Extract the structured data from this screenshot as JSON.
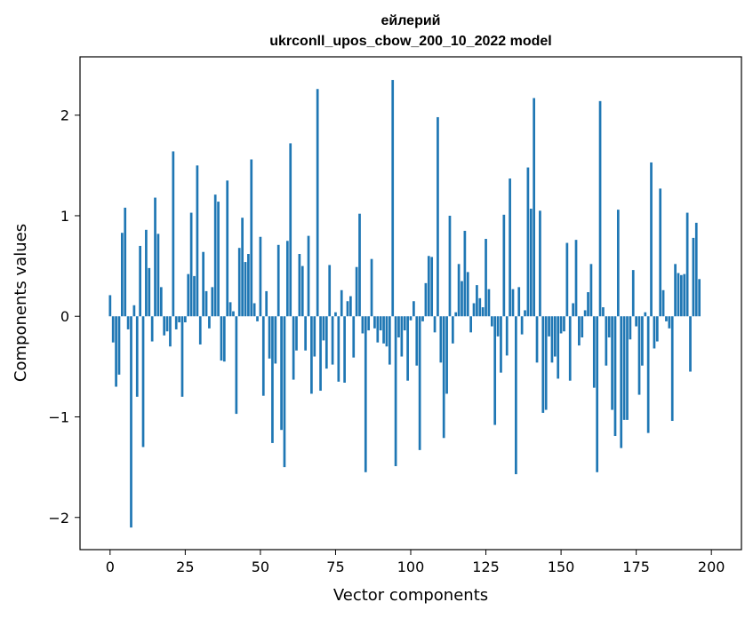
{
  "chart_data": {
    "type": "bar",
    "title_line1": "ейлерий",
    "title_line2": "ukrconll_upos_cbow_200_10_2022 model",
    "xlabel": "Vector components",
    "ylabel": "Components values",
    "xlim": [
      -10,
      210
    ],
    "ylim": [
      -2.32,
      2.58
    ],
    "xticks": [
      0,
      25,
      50,
      75,
      100,
      125,
      150,
      175,
      200
    ],
    "yticks": [
      -2,
      -1,
      0,
      1,
      2
    ],
    "ytick_labels": [
      "−2",
      "−1",
      "0",
      "1",
      "2"
    ],
    "bar_color": "#1f77b4",
    "grid": false,
    "values": [
      0.21,
      -0.26,
      -0.7,
      -0.58,
      0.83,
      1.08,
      -0.13,
      -2.1,
      0.11,
      -0.8,
      0.7,
      -1.3,
      0.86,
      0.48,
      -0.25,
      1.18,
      0.82,
      0.29,
      -0.19,
      -0.15,
      -0.3,
      1.64,
      -0.13,
      -0.06,
      -0.8,
      -0.06,
      0.42,
      1.03,
      0.4,
      1.5,
      -0.28,
      0.64,
      0.25,
      -0.12,
      0.29,
      1.21,
      1.14,
      -0.44,
      -0.45,
      1.35,
      0.14,
      0.05,
      -0.97,
      0.68,
      0.98,
      0.54,
      0.62,
      1.56,
      0.13,
      -0.05,
      0.79,
      -0.79,
      0.25,
      -0.42,
      -1.26,
      -0.47,
      0.71,
      -1.13,
      -1.5,
      0.75,
      1.72,
      -0.63,
      -0.34,
      0.62,
      0.5,
      -0.34,
      0.8,
      -0.77,
      -0.4,
      2.26,
      -0.74,
      -0.24,
      -0.52,
      0.51,
      -0.48,
      0.04,
      -0.65,
      0.26,
      -0.66,
      0.15,
      0.2,
      -0.41,
      0.49,
      1.02,
      -0.17,
      -1.55,
      -0.14,
      0.57,
      -0.12,
      -0.26,
      -0.14,
      -0.27,
      -0.3,
      -0.48,
      2.35,
      -1.49,
      -0.21,
      -0.4,
      -0.14,
      -0.64,
      -0.04,
      0.15,
      -0.49,
      -1.33,
      -0.05,
      0.33,
      0.6,
      0.59,
      -0.16,
      1.98,
      -0.46,
      -1.21,
      -0.77,
      1.0,
      -0.27,
      0.04,
      0.52,
      0.35,
      0.85,
      0.44,
      -0.16,
      0.13,
      0.31,
      0.18,
      0.09,
      0.77,
      0.27,
      -0.1,
      -1.08,
      -0.2,
      -0.56,
      1.01,
      -0.39,
      1.37,
      0.27,
      -1.57,
      0.29,
      -0.18,
      0.06,
      1.48,
      1.07,
      2.17,
      -0.46,
      1.05,
      -0.96,
      -0.93,
      -0.2,
      -0.46,
      -0.4,
      -0.62,
      -0.17,
      -0.15,
      0.73,
      -0.64,
      0.13,
      0.76,
      -0.29,
      -0.21,
      0.06,
      0.24,
      0.52,
      -0.71,
      -1.55,
      2.14,
      0.09,
      -0.49,
      -0.21,
      -0.93,
      -1.19,
      1.06,
      -1.31,
      -1.03,
      -1.03,
      -0.23,
      0.46,
      -0.1,
      -0.78,
      -0.49,
      0.04,
      -1.16,
      1.53,
      -0.32,
      -0.25,
      1.27,
      0.26,
      -0.05,
      -0.12,
      -1.04,
      0.52,
      0.43,
      0.41,
      0.42,
      1.03,
      -0.55,
      0.78,
      0.93,
      0.37
    ]
  }
}
